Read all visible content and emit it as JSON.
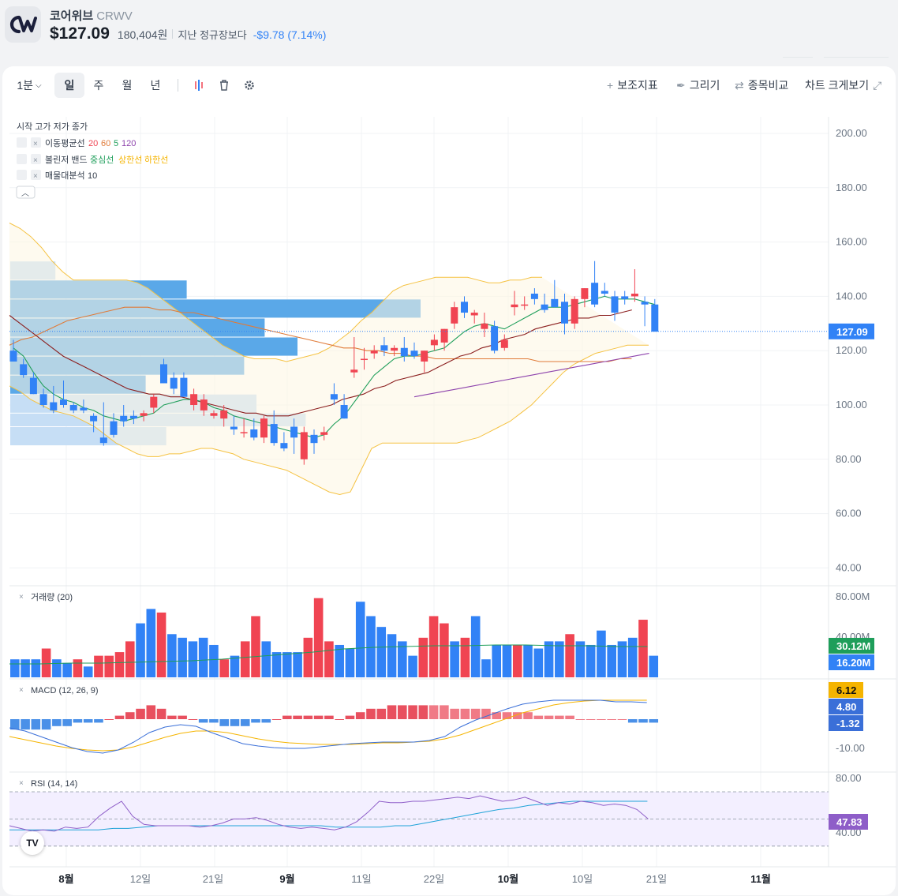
{
  "stock": {
    "name": "코어위브",
    "ticker": "CRWV",
    "price": "$127.09",
    "price_krw": "180,404원",
    "prev_close_label": "지난 정규장보다",
    "change": "-$9.78 (7.14%)",
    "logo_text": "CW"
  },
  "toolbar": {
    "interval": "1분",
    "periods": [
      "일",
      "주",
      "월",
      "년"
    ],
    "active_period": "일",
    "indicators": "보조지표",
    "draw": "그리기",
    "compare": "종목비교",
    "expand": "차트 크게보기"
  },
  "legend": {
    "ohlc": "시작 고가 저가 종가",
    "ma": {
      "label": "이동평균선",
      "periods": [
        "20",
        "60",
        "5",
        "120"
      ]
    },
    "bb": {
      "label": "볼린저 밴드",
      "mid": "중심선",
      "up": "상한선",
      "low": "하한선"
    },
    "vp": {
      "label": "매물대분석",
      "value": "10"
    }
  },
  "colors": {
    "up": "#f04452",
    "down": "#3182f6",
    "ma5": "#1e9e5a",
    "ma20": "#8b1e1e",
    "ma60": "#e07b39",
    "ma120": "#8e44ad",
    "bb": "#f5c242",
    "signal": "#f5b400"
  },
  "price_axis": {
    "ticks": [
      "200.00",
      "180.00",
      "160.00",
      "140.00",
      "120.00",
      "100.00",
      "80.00",
      "60.00",
      "40.00"
    ],
    "current": "127.09"
  },
  "volume": {
    "title": "거래량 (20)",
    "ticks": [
      "80.00M",
      "40.00M"
    ],
    "badges": [
      "30.12M",
      "16.20M"
    ]
  },
  "macd": {
    "title": "MACD (12, 26, 9)",
    "ticks": [
      "-10.00"
    ],
    "badges": [
      "6.12",
      "4.80",
      "-1.32"
    ]
  },
  "rsi": {
    "title": "RSI (14, 14)",
    "ticks": [
      "80.00",
      "40.00"
    ],
    "badge": "47.83"
  },
  "time_axis": [
    "8월",
    "12일",
    "21일",
    "9월",
    "11일",
    "22일",
    "10월",
    "10일",
    "21일",
    "11월"
  ],
  "tv_logo": "TV",
  "chart_data": {
    "type": "candlestick",
    "ylim": [
      35,
      205
    ],
    "candles": [
      {
        "o": 120,
        "h": 124,
        "l": 116,
        "c": 116
      },
      {
        "o": 115,
        "h": 117,
        "l": 110,
        "c": 111
      },
      {
        "o": 110,
        "h": 112,
        "l": 104,
        "c": 104
      },
      {
        "o": 104,
        "h": 106,
        "l": 99,
        "c": 100
      },
      {
        "o": 101,
        "h": 107,
        "l": 97,
        "c": 98
      },
      {
        "o": 102,
        "h": 109,
        "l": 99,
        "c": 100
      },
      {
        "o": 100,
        "h": 101,
        "l": 97,
        "c": 98
      },
      {
        "o": 99,
        "h": 102,
        "l": 97,
        "c": 98
      },
      {
        "o": 96,
        "h": 97,
        "l": 90,
        "c": 94
      },
      {
        "o": 88,
        "h": 101,
        "l": 85,
        "c": 86
      },
      {
        "o": 94,
        "h": 97,
        "l": 88,
        "c": 89
      },
      {
        "o": 96,
        "h": 100,
        "l": 92,
        "c": 94
      },
      {
        "o": 96,
        "h": 98,
        "l": 93,
        "c": 95
      },
      {
        "o": 96,
        "h": 98,
        "l": 94,
        "c": 97
      },
      {
        "o": 99,
        "h": 104,
        "l": 97,
        "c": 103
      },
      {
        "o": 115,
        "h": 117,
        "l": 108,
        "c": 108
      },
      {
        "o": 110,
        "h": 112,
        "l": 104,
        "c": 106
      },
      {
        "o": 110,
        "h": 112,
        "l": 103,
        "c": 103
      },
      {
        "o": 100,
        "h": 106,
        "l": 98,
        "c": 104
      },
      {
        "o": 98,
        "h": 104,
        "l": 96,
        "c": 102
      },
      {
        "o": 96,
        "h": 98,
        "l": 95,
        "c": 97
      },
      {
        "o": 95,
        "h": 100,
        "l": 92,
        "c": 98
      },
      {
        "o": 92,
        "h": 96,
        "l": 89,
        "c": 91
      },
      {
        "o": 90,
        "h": 95,
        "l": 88,
        "c": 90
      },
      {
        "o": 91,
        "h": 95,
        "l": 87,
        "c": 88
      },
      {
        "o": 88,
        "h": 96,
        "l": 86,
        "c": 95
      },
      {
        "o": 93,
        "h": 98,
        "l": 85,
        "c": 86
      },
      {
        "o": 86,
        "h": 90,
        "l": 83,
        "c": 84
      },
      {
        "o": 92,
        "h": 95,
        "l": 82,
        "c": 88
      },
      {
        "o": 80,
        "h": 92,
        "l": 78,
        "c": 90
      },
      {
        "o": 89,
        "h": 91,
        "l": 82,
        "c": 86
      },
      {
        "o": 89,
        "h": 92,
        "l": 87,
        "c": 90
      },
      {
        "o": 104,
        "h": 108,
        "l": 100,
        "c": 102
      },
      {
        "o": 100,
        "h": 104,
        "l": 95,
        "c": 95
      },
      {
        "o": 112,
        "h": 125,
        "l": 110,
        "c": 113
      },
      {
        "o": 117,
        "h": 121,
        "l": 113,
        "c": 117
      },
      {
        "o": 119,
        "h": 122,
        "l": 117,
        "c": 120
      },
      {
        "o": 122,
        "h": 125,
        "l": 118,
        "c": 120
      },
      {
        "o": 120,
        "h": 122,
        "l": 118,
        "c": 121
      },
      {
        "o": 121,
        "h": 125,
        "l": 116,
        "c": 118
      },
      {
        "o": 120,
        "h": 123,
        "l": 117,
        "c": 118
      },
      {
        "o": 116,
        "h": 120,
        "l": 112,
        "c": 120
      },
      {
        "o": 122,
        "h": 126,
        "l": 120,
        "c": 124
      },
      {
        "o": 123,
        "h": 128,
        "l": 120,
        "c": 128
      },
      {
        "o": 130,
        "h": 138,
        "l": 128,
        "c": 136
      },
      {
        "o": 138,
        "h": 140,
        "l": 132,
        "c": 134
      },
      {
        "o": 133,
        "h": 135,
        "l": 130,
        "c": 134
      },
      {
        "o": 128,
        "h": 134,
        "l": 125,
        "c": 130
      },
      {
        "o": 129,
        "h": 131,
        "l": 119,
        "c": 120
      },
      {
        "o": 121,
        "h": 126,
        "l": 120,
        "c": 124
      },
      {
        "o": 136,
        "h": 142,
        "l": 133,
        "c": 137
      },
      {
        "o": 137,
        "h": 140,
        "l": 135,
        "c": 137
      },
      {
        "o": 141,
        "h": 143,
        "l": 137,
        "c": 139
      },
      {
        "o": 137,
        "h": 141,
        "l": 134,
        "c": 135
      },
      {
        "o": 139,
        "h": 146,
        "l": 136,
        "c": 136
      },
      {
        "o": 138,
        "h": 141,
        "l": 126,
        "c": 130
      },
      {
        "o": 130,
        "h": 140,
        "l": 128,
        "c": 139
      },
      {
        "o": 139,
        "h": 143,
        "l": 136,
        "c": 143
      },
      {
        "o": 145,
        "h": 153,
        "l": 136,
        "c": 137
      },
      {
        "o": 142,
        "h": 145,
        "l": 140,
        "c": 141
      },
      {
        "o": 140,
        "h": 142,
        "l": 131,
        "c": 134
      },
      {
        "o": 140,
        "h": 142,
        "l": 137,
        "c": 139
      },
      {
        "o": 140,
        "h": 150,
        "l": 138,
        "c": 141
      },
      {
        "o": 138,
        "h": 140,
        "l": 129,
        "c": 137
      },
      {
        "o": 137,
        "h": 139,
        "l": 127,
        "c": 127
      }
    ],
    "ma5": [
      121,
      118,
      112,
      107,
      104,
      102,
      101,
      99,
      98,
      96,
      95,
      94,
      95,
      96,
      97,
      100,
      101,
      102,
      102,
      101,
      99,
      98,
      96,
      95,
      94,
      93,
      92,
      91,
      90,
      89,
      88,
      89,
      93,
      96,
      101,
      106,
      111,
      114,
      117,
      118,
      118,
      119,
      120,
      121,
      124,
      127,
      129,
      130,
      129,
      128,
      130,
      132,
      134,
      136,
      136,
      136,
      137,
      138,
      139,
      140,
      139,
      139,
      139,
      138,
      137
    ],
    "ma20": [
      133,
      130,
      127,
      124,
      121,
      118,
      116,
      114,
      112,
      110,
      108,
      106,
      105,
      104,
      104,
      103,
      103,
      102,
      101,
      100,
      99,
      98,
      97,
      97,
      96,
      96,
      96,
      97,
      98,
      99,
      100,
      102,
      103,
      104,
      106,
      107,
      109,
      110,
      111,
      112,
      114,
      116,
      118,
      119,
      121,
      122,
      124,
      125,
      126,
      128,
      129,
      130,
      131,
      132,
      132,
      133,
      133,
      134,
      135
    ],
    "ma60": [
      122,
      124,
      125,
      127,
      129,
      131,
      132,
      133,
      134,
      135,
      136,
      136,
      136,
      135,
      135,
      134,
      134,
      133,
      132,
      131,
      130,
      129,
      128,
      127,
      126,
      125,
      124,
      123,
      122,
      121,
      121,
      120,
      120,
      119,
      119,
      118,
      118,
      117,
      117,
      117,
      117,
      117,
      117,
      117,
      117,
      117,
      116,
      116,
      116,
      116,
      116,
      116,
      116,
      117,
      117
    ],
    "ma120": [
      103,
      104,
      105,
      106,
      107,
      108,
      109,
      110,
      111,
      112,
      113,
      114,
      115,
      116,
      117,
      118,
      119
    ],
    "bb_upper": [
      167,
      165,
      162,
      158,
      153,
      149,
      146,
      146,
      146,
      146,
      146,
      146,
      145,
      143,
      140,
      137,
      134,
      131,
      128,
      125,
      122,
      120,
      118,
      117,
      117,
      117,
      116,
      117,
      118,
      119,
      121,
      124,
      127,
      131,
      134,
      138,
      142,
      144,
      145,
      146,
      147,
      147,
      147,
      147,
      146,
      145,
      145,
      146,
      146,
      147,
      147
    ],
    "bb_lower": [
      107,
      105,
      102,
      100,
      98,
      97,
      96,
      94,
      92,
      89,
      86,
      84,
      82,
      81,
      81,
      82,
      82,
      83,
      84,
      84,
      83,
      82,
      80,
      79,
      78,
      77,
      76,
      74,
      72,
      70,
      68,
      67,
      68,
      76,
      84,
      86,
      86,
      86,
      86,
      86,
      86,
      86,
      86,
      87,
      88,
      90,
      92,
      94,
      97,
      100,
      104,
      108,
      112,
      115,
      117,
      119,
      120,
      121,
      122,
      122,
      122
    ],
    "volume": [
      5,
      5,
      5,
      8,
      5,
      4,
      5,
      3,
      6,
      6,
      7,
      10,
      15,
      19,
      18,
      12,
      11,
      10,
      11,
      9,
      5,
      6,
      10,
      17,
      10,
      7,
      7,
      7,
      11,
      22,
      10,
      9,
      8,
      21,
      17,
      14,
      12,
      10,
      6,
      11,
      17,
      15,
      10,
      11,
      17,
      5,
      9,
      9,
      9,
      9,
      8,
      10,
      10,
      12,
      10,
      9,
      13,
      9,
      10,
      11,
      16,
      6
    ],
    "vol_up": [
      false,
      false,
      false,
      true,
      false,
      false,
      true,
      false,
      true,
      true,
      true,
      true,
      false,
      false,
      true,
      false,
      false,
      false,
      false,
      false,
      true,
      false,
      true,
      true,
      false,
      false,
      false,
      false,
      true,
      true,
      true,
      false,
      false,
      false,
      false,
      false,
      false,
      false,
      false,
      true,
      true,
      true,
      false,
      true,
      false,
      false,
      false,
      false,
      true,
      false,
      false,
      false,
      false,
      true,
      false,
      false,
      false,
      false,
      false,
      false,
      true,
      false
    ],
    "rsi": [
      45,
      43,
      41,
      42,
      41,
      44,
      43,
      44,
      52,
      58,
      63,
      52,
      46,
      45,
      45,
      45,
      45,
      44,
      45,
      47,
      50,
      50,
      51,
      49,
      46,
      44,
      43,
      44,
      43,
      42,
      44,
      48,
      55,
      63,
      62,
      62,
      63,
      63,
      64,
      65,
      66,
      65,
      67,
      65,
      63,
      64,
      66,
      63,
      60,
      62,
      61,
      63,
      62,
      60,
      61,
      60,
      57,
      50
    ]
  }
}
